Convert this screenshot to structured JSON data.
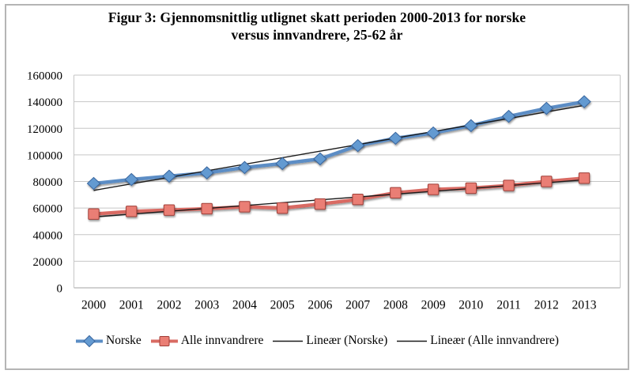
{
  "figure": {
    "background": "#ffffff",
    "border_color": "#b5b5b5"
  },
  "chart_data": {
    "type": "line",
    "title": "Figur 3: Gjennomsnittlig utlignet skatt perioden 2000-2013 for norske versus innvandrere, 25-62 år",
    "title_lines": [
      "Figur 3: Gjennomsnittlig utlignet skatt perioden 2000-2013 for norske",
      "versus innvandrere, 25-62 år"
    ],
    "xlabel": "",
    "ylabel": "",
    "categories": [
      "2000",
      "2001",
      "2002",
      "2003",
      "2004",
      "2005",
      "2006",
      "2007",
      "2008",
      "2009",
      "2010",
      "2011",
      "2012",
      "2013"
    ],
    "series": [
      {
        "name": "Norske",
        "marker": "diamond",
        "color": "#5b8dc5",
        "marker_fill": "#649ad1",
        "marker_stroke": "#37659e",
        "values": [
          78500,
          81500,
          84000,
          86500,
          90500,
          93500,
          97000,
          107000,
          112500,
          116500,
          122000,
          129000,
          135000,
          140000
        ]
      },
      {
        "name": "Alle innvandrere",
        "marker": "square",
        "color": "#d96b63",
        "marker_fill": "#ea7e74",
        "marker_stroke": "#a03f39",
        "values": [
          55500,
          57500,
          58500,
          59500,
          61000,
          60000,
          63000,
          66500,
          71500,
          74000,
          75000,
          77000,
          80000,
          82500
        ]
      }
    ],
    "trendlines": [
      {
        "name": "Lineær (Norske)",
        "series": 0,
        "color": "#1a1a1a"
      },
      {
        "name": "Lineær (Alle innvandrere)",
        "series": 1,
        "color": "#1a1a1a"
      }
    ],
    "ylim": [
      0,
      160000
    ],
    "ytick_step": 20000,
    "yticks": [
      "0",
      "20000",
      "40000",
      "60000",
      "80000",
      "100000",
      "120000",
      "140000",
      "160000"
    ],
    "grid": true,
    "gridline_color": "#c6c6c6",
    "axis_line_color": "#a3a3a3",
    "legend_position": "bottom"
  }
}
